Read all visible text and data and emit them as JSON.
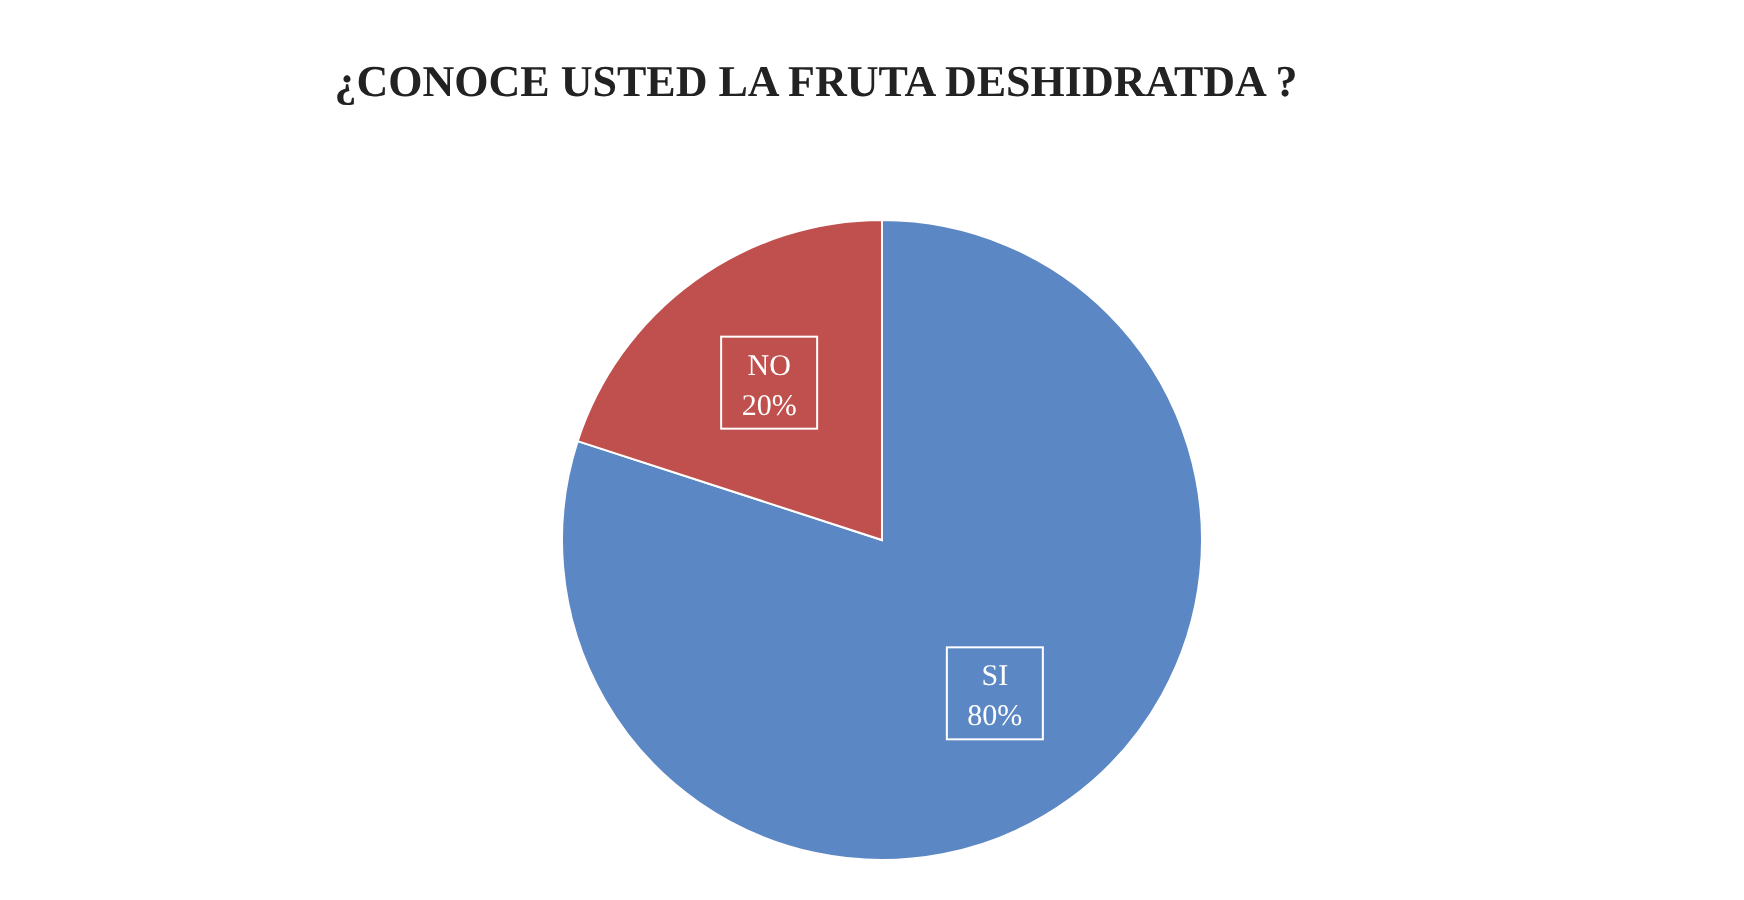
{
  "chart_data": {
    "type": "pie",
    "title": "¿CONOCE USTED LA FRUTA DESHIDRATDA ?",
    "categories": [
      "SI",
      "NO"
    ],
    "values": [
      80,
      20
    ],
    "value_labels": [
      "80%",
      "20%"
    ],
    "colors": [
      "#5b87c4",
      "#c0504d"
    ],
    "legend": false
  }
}
